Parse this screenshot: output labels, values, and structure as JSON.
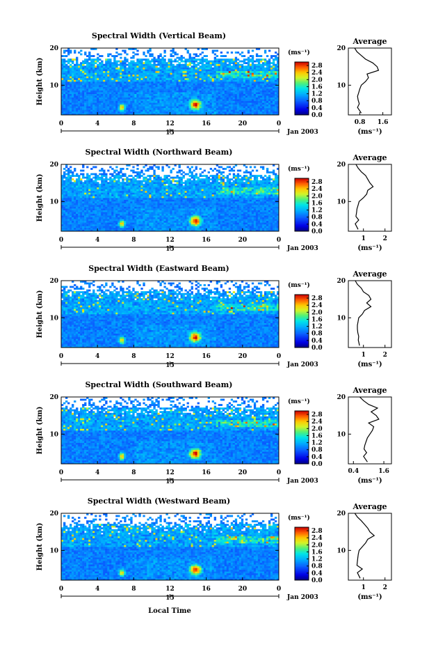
{
  "figure": {
    "x_axis_label": "Local Time",
    "date_label": "Jan 2003",
    "day_marker": "15",
    "colorbar_unit": "(ms⁻¹)",
    "average_title": "Average",
    "average_unit": "(ms⁻¹)"
  },
  "chart_data": [
    {
      "type": "heatmap",
      "title": "Spectral Width (Vertical Beam)",
      "ylabel": "Height (km)",
      "xlabel": "Local Time",
      "x_ticks": [
        "0",
        "4",
        "8",
        "12",
        "16",
        "20",
        "0"
      ],
      "xlim": [
        0,
        24
      ],
      "y_ticks": [
        "20",
        "10"
      ],
      "ylim": [
        2,
        20
      ],
      "colorbar": {
        "unit": "(ms⁻¹)",
        "ticks": [
          "2.8",
          "2.4",
          "2.0",
          "1.6",
          "1.2",
          "0.8",
          "0.4",
          "0.0"
        ],
        "range": [
          0,
          3.0
        ]
      },
      "seed": 11,
      "average": {
        "title": "Average",
        "xlabel": "(ms⁻¹)",
        "x_ticks": [
          "0.8",
          "1.6"
        ],
        "xlim": [
          0.4,
          1.9
        ],
        "y_ticks": [
          "20",
          "10"
        ],
        "heights": [
          2.5,
          4,
          5,
          6,
          7,
          8,
          9,
          10,
          11,
          12,
          13,
          14,
          15,
          16,
          17,
          18,
          19,
          20
        ],
        "values": [
          0.85,
          0.72,
          0.78,
          0.74,
          0.72,
          0.76,
          0.8,
          0.85,
          1.0,
          1.1,
          1.05,
          1.45,
          1.4,
          1.25,
          1.0,
          0.85,
          0.7,
          0.62
        ]
      }
    },
    {
      "type": "heatmap",
      "title": "Spectral Width (Northward Beam)",
      "ylabel": "Height (km)",
      "xlabel": "Local Time",
      "x_ticks": [
        "0",
        "4",
        "8",
        "12",
        "16",
        "20",
        "0"
      ],
      "xlim": [
        0,
        24
      ],
      "y_ticks": [
        "20",
        "10"
      ],
      "ylim": [
        2,
        20
      ],
      "colorbar": {
        "unit": "(ms⁻¹)",
        "ticks": [
          "2.8",
          "2.4",
          "2.0",
          "1.6",
          "1.2",
          "0.8",
          "0.4",
          "0.0"
        ],
        "range": [
          0,
          3.0
        ]
      },
      "seed": 23,
      "average": {
        "title": "Average",
        "xlabel": "(ms⁻¹)",
        "x_ticks": [
          "1",
          "2"
        ],
        "xlim": [
          0.3,
          2.3
        ],
        "y_ticks": [
          "20",
          "10"
        ],
        "heights": [
          2.5,
          4,
          5,
          6,
          7,
          8,
          9,
          10,
          11,
          12,
          13,
          14,
          15,
          16,
          17,
          18,
          19,
          20
        ],
        "values": [
          0.75,
          0.62,
          0.78,
          0.65,
          0.68,
          0.7,
          0.75,
          0.8,
          1.0,
          1.15,
          1.2,
          1.45,
          1.3,
          1.2,
          1.1,
          0.9,
          0.75,
          0.65
        ]
      }
    },
    {
      "type": "heatmap",
      "title": "Spectral Width (Eastward Beam)",
      "ylabel": "Height (km)",
      "xlabel": "Local Time",
      "x_ticks": [
        "0",
        "4",
        "8",
        "12",
        "16",
        "20",
        "0"
      ],
      "xlim": [
        0,
        24
      ],
      "y_ticks": [
        "20",
        "10"
      ],
      "ylim": [
        2,
        20
      ],
      "colorbar": {
        "unit": "(ms⁻¹)",
        "ticks": [
          "2.8",
          "2.4",
          "2.0",
          "1.6",
          "1.2",
          "0.8",
          "0.4",
          "0.0"
        ],
        "range": [
          0,
          3.0
        ]
      },
      "seed": 37,
      "average": {
        "title": "Average",
        "xlabel": "(ms⁻¹)",
        "x_ticks": [
          "1",
          "2"
        ],
        "xlim": [
          0.3,
          2.3
        ],
        "y_ticks": [
          "20",
          "10"
        ],
        "heights": [
          2.5,
          4,
          5,
          6,
          7,
          8,
          9,
          10,
          11,
          12,
          13,
          14,
          15,
          16,
          17,
          18,
          19,
          20
        ],
        "values": [
          0.82,
          0.76,
          0.78,
          0.74,
          0.72,
          0.72,
          0.75,
          0.78,
          0.95,
          1.05,
          1.35,
          1.15,
          1.35,
          1.25,
          1.0,
          0.9,
          0.72,
          0.62
        ]
      }
    },
    {
      "type": "heatmap",
      "title": "Spectral Width (Southward Beam)",
      "ylabel": "Height (km)",
      "xlabel": "Local Time",
      "x_ticks": [
        "0",
        "4",
        "8",
        "12",
        "16",
        "20",
        "0"
      ],
      "xlim": [
        0,
        24
      ],
      "y_ticks": [
        "20",
        "10"
      ],
      "ylim": [
        2,
        20
      ],
      "colorbar": {
        "unit": "(ms⁻¹)",
        "ticks": [
          "2.8",
          "2.4",
          "2.0",
          "1.6",
          "1.2",
          "0.8",
          "0.4",
          "0.0"
        ],
        "range": [
          0,
          3.0
        ]
      },
      "seed": 51,
      "average": {
        "title": "Average",
        "xlabel": "(ms⁻¹)",
        "x_ticks": [
          "0.4",
          "1.6"
        ],
        "xlim": [
          0.2,
          1.9
        ],
        "y_ticks": [
          "20",
          "10"
        ],
        "heights": [
          2.5,
          4,
          5,
          6,
          7,
          8,
          9,
          10,
          11,
          12,
          13,
          14,
          15,
          16,
          17,
          18,
          19,
          20
        ],
        "values": [
          0.95,
          0.8,
          0.92,
          0.82,
          0.85,
          0.9,
          0.95,
          1.05,
          1.15,
          1.2,
          1.0,
          1.4,
          1.3,
          1.1,
          1.35,
          1.0,
          0.8,
          0.65
        ]
      }
    },
    {
      "type": "heatmap",
      "title": "Spectral Width (Westward Beam)",
      "ylabel": "Height (km)",
      "xlabel": "Local Time",
      "x_ticks": [
        "0",
        "4",
        "8",
        "12",
        "16",
        "20",
        "0"
      ],
      "xlim": [
        0,
        24
      ],
      "y_ticks": [
        "20",
        "10"
      ],
      "ylim": [
        2,
        20
      ],
      "colorbar": {
        "unit": "(ms⁻¹)",
        "ticks": [
          "2.8",
          "2.4",
          "2.0",
          "1.6",
          "1.2",
          "0.8",
          "0.4",
          "0.0"
        ],
        "range": [
          0,
          3.0
        ]
      },
      "seed": 67,
      "average": {
        "title": "Average",
        "xlabel": "(ms⁻¹)",
        "x_ticks": [
          "1",
          "2"
        ],
        "xlim": [
          0.3,
          2.3
        ],
        "y_ticks": [
          "20",
          "10"
        ],
        "heights": [
          2.5,
          4,
          5,
          6,
          7,
          8,
          9,
          10,
          11,
          12,
          13,
          14,
          15,
          16,
          17,
          18,
          19,
          20
        ],
        "values": [
          0.85,
          0.72,
          0.95,
          0.7,
          0.72,
          0.74,
          0.76,
          0.8,
          0.95,
          1.1,
          1.2,
          1.5,
          1.3,
          1.2,
          1.05,
          0.9,
          0.72,
          0.6
        ]
      }
    }
  ]
}
